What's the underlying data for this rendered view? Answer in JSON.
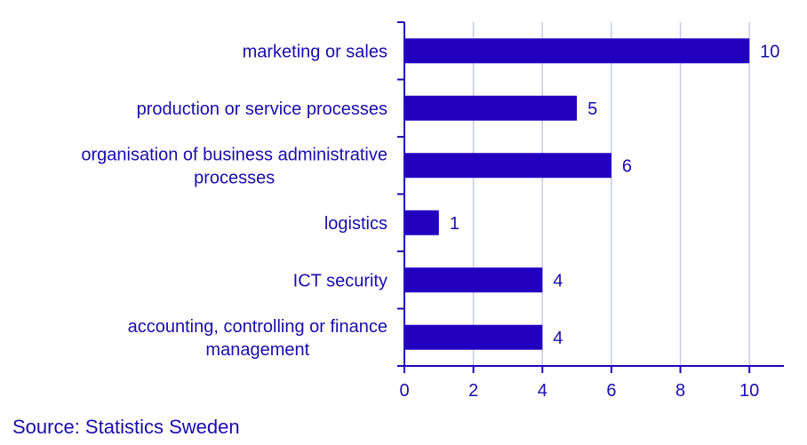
{
  "chart_data": {
    "type": "bar",
    "orientation": "horizontal",
    "categories": [
      [
        "marketing or sales"
      ],
      [
        "production or service processes"
      ],
      [
        "organisation of business administrative",
        "processes"
      ],
      [
        "logistics"
      ],
      [
        "ICT security"
      ],
      [
        "accounting, controlling or finance",
        "management"
      ]
    ],
    "values": [
      10,
      5,
      6,
      1,
      4,
      4
    ],
    "xlim": [
      0,
      11
    ],
    "xticks": [
      0,
      2,
      4,
      6,
      8,
      10
    ],
    "grid": "vertical",
    "bar_color": "#2200c0",
    "grid_color": "#c9c9ea",
    "text_color": "#1a0dab"
  },
  "source": "Source: Statistics Sweden"
}
